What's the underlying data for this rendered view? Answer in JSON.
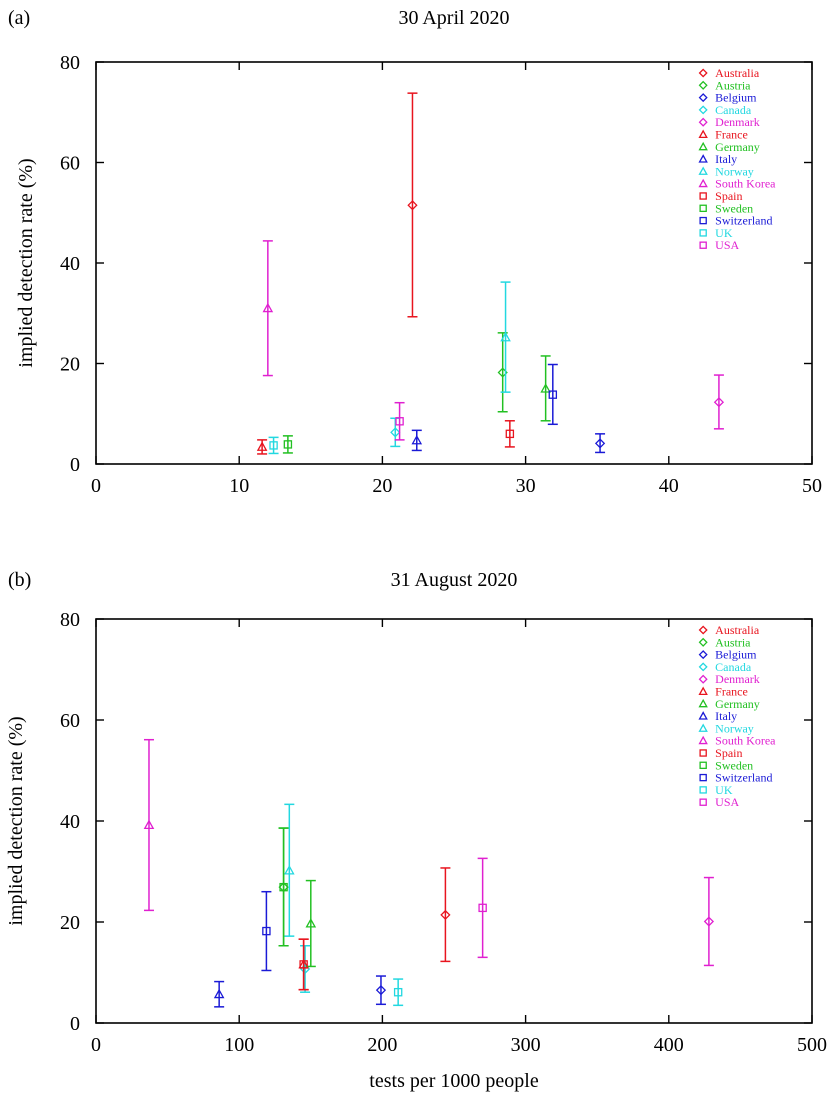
{
  "x_axis_title": "tests per 1000 people",
  "chart_data": [
    {
      "type": "scatter",
      "panel": "(a)",
      "title": "30 April 2020",
      "xlabel": "",
      "ylabel": "implied detection rate (%)",
      "xlim": [
        0,
        50
      ],
      "ylim": [
        0,
        80
      ],
      "xticks": [
        "0",
        "10",
        "20",
        "30",
        "40",
        "50"
      ],
      "yticks": [
        "0",
        "20",
        "40",
        "60",
        "80"
      ],
      "legend_position": "top-right",
      "series": [
        {
          "name": "Australia",
          "color": "#e8141e",
          "marker": "diamond",
          "x": 22.1,
          "y": 51.5,
          "low": 29.3,
          "high": 73.8
        },
        {
          "name": "Austria",
          "color": "#22c022",
          "marker": "diamond",
          "x": 28.4,
          "y": 18.2,
          "low": 10.4,
          "high": 26.1
        },
        {
          "name": "Belgium",
          "color": "#1a1ad6",
          "marker": "diamond",
          "x": 35.2,
          "y": 4.1,
          "low": 2.3,
          "high": 6.0
        },
        {
          "name": "Canada",
          "color": "#22d8e0",
          "marker": "diamond",
          "x": 20.9,
          "y": 6.3,
          "low": 3.5,
          "high": 9.1
        },
        {
          "name": "Denmark",
          "color": "#e020d0",
          "marker": "diamond",
          "x": 43.5,
          "y": 12.3,
          "low": 7.0,
          "high": 17.7
        },
        {
          "name": "France",
          "color": "#e8141e",
          "marker": "triangle",
          "x": 11.6,
          "y": 3.4,
          "low": 2.0,
          "high": 4.8
        },
        {
          "name": "Germany",
          "color": "#22c022",
          "marker": "triangle",
          "x": 31.4,
          "y": 15.0,
          "low": 8.6,
          "high": 21.5
        },
        {
          "name": "Italy",
          "color": "#1a1ad6",
          "marker": "triangle",
          "x": 22.4,
          "y": 4.7,
          "low": 2.7,
          "high": 6.7
        },
        {
          "name": "Norway",
          "color": "#22d8e0",
          "marker": "triangle",
          "x": 28.6,
          "y": 25.2,
          "low": 14.3,
          "high": 36.2
        },
        {
          "name": "South Korea",
          "color": "#e020d0",
          "marker": "triangle",
          "x": 12.0,
          "y": 31.0,
          "low": 17.6,
          "high": 44.4
        },
        {
          "name": "Spain",
          "color": "#e8141e",
          "marker": "square",
          "x": 28.9,
          "y": 6.0,
          "low": 3.4,
          "high": 8.6
        },
        {
          "name": "Sweden",
          "color": "#22c022",
          "marker": "square",
          "x": 13.4,
          "y": 3.9,
          "low": 2.2,
          "high": 5.6
        },
        {
          "name": "Switzerland",
          "color": "#1a1ad6",
          "marker": "square",
          "x": 31.9,
          "y": 13.8,
          "low": 7.9,
          "high": 19.8
        },
        {
          "name": "UK",
          "color": "#22d8e0",
          "marker": "square",
          "x": 12.4,
          "y": 3.7,
          "low": 2.1,
          "high": 5.3
        },
        {
          "name": "USA",
          "color": "#e020d0",
          "marker": "square",
          "x": 21.2,
          "y": 8.5,
          "low": 4.8,
          "high": 12.2
        }
      ]
    },
    {
      "type": "scatter",
      "panel": "(b)",
      "title": "31 August 2020",
      "xlabel": "tests per 1000 people",
      "ylabel": "implied detection rate (%)",
      "xlim": [
        0,
        500
      ],
      "ylim": [
        0,
        80
      ],
      "xticks": [
        "0",
        "100",
        "200",
        "300",
        "400",
        "500"
      ],
      "yticks": [
        "0",
        "20",
        "40",
        "60",
        "80"
      ],
      "legend_position": "top-right",
      "series": [
        {
          "name": "Australia",
          "color": "#e8141e",
          "marker": "diamond",
          "x": 244,
          "y": 21.4,
          "low": 12.2,
          "high": 30.7
        },
        {
          "name": "Austria",
          "color": "#22c022",
          "marker": "diamond",
          "x": 131,
          "y": 26.9,
          "low": 15.3,
          "high": 38.6
        },
        {
          "name": "Belgium",
          "color": "#1a1ad6",
          "marker": "diamond",
          "x": 199,
          "y": 6.5,
          "low": 3.7,
          "high": 9.3
        },
        {
          "name": "Canada",
          "color": "#22d8e0",
          "marker": "diamond",
          "x": 146,
          "y": 10.7,
          "low": 6.1,
          "high": 15.3
        },
        {
          "name": "Denmark",
          "color": "#e020d0",
          "marker": "diamond",
          "x": 428,
          "y": 20.1,
          "low": 11.4,
          "high": 28.8
        },
        {
          "name": "France",
          "color": "#e8141e",
          "marker": "triangle",
          "x": 145,
          "y": 11.6,
          "low": 6.6,
          "high": 16.6
        },
        {
          "name": "Germany",
          "color": "#22c022",
          "marker": "triangle",
          "x": 150,
          "y": 19.7,
          "low": 11.2,
          "high": 28.2
        },
        {
          "name": "Italy",
          "color": "#1a1ad6",
          "marker": "triangle",
          "x": 86,
          "y": 5.7,
          "low": 3.2,
          "high": 8.2
        },
        {
          "name": "Norway",
          "color": "#22d8e0",
          "marker": "triangle",
          "x": 135,
          "y": 30.2,
          "low": 17.2,
          "high": 43.3
        },
        {
          "name": "South Korea",
          "color": "#e020d0",
          "marker": "triangle",
          "x": 37,
          "y": 39.2,
          "low": 22.3,
          "high": 56.1
        },
        {
          "name": "Spain",
          "color": "#e8141e",
          "marker": "square",
          "x": 145,
          "y": 11.6,
          "low": 6.6,
          "high": 16.6
        },
        {
          "name": "Sweden",
          "color": "#22c022",
          "marker": "square",
          "x": 131,
          "y": 26.9,
          "low": 15.3,
          "high": 38.6
        },
        {
          "name": "Switzerland",
          "color": "#1a1ad6",
          "marker": "square",
          "x": 119,
          "y": 18.2,
          "low": 10.4,
          "high": 26.0
        },
        {
          "name": "UK",
          "color": "#22d8e0",
          "marker": "square",
          "x": 211,
          "y": 6.1,
          "low": 3.5,
          "high": 8.7
        },
        {
          "name": "USA",
          "color": "#e020d0",
          "marker": "square",
          "x": 270,
          "y": 22.8,
          "low": 13.0,
          "high": 32.6
        }
      ]
    }
  ]
}
